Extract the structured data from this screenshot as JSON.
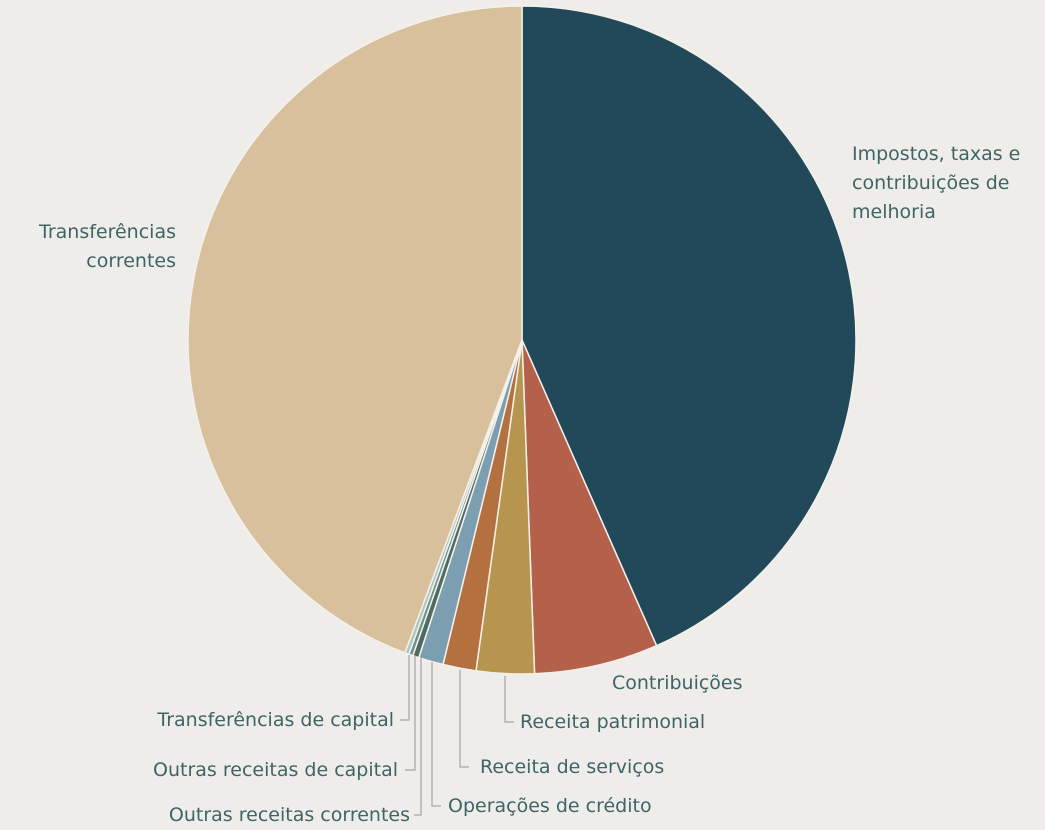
{
  "chart_data": {
    "type": "pie",
    "categories": [
      "Impostos, taxas e contribuições de melhoria",
      "Contribuições",
      "Receita patrimonial",
      "Receita de serviços",
      "Operações de crédito",
      "Outras receitas correntes",
      "Outras receitas de capital",
      "Transferências de capital",
      "Transferências correntes"
    ],
    "values": [
      43.4,
      6.0,
      2.8,
      1.6,
      1.2,
      0.3,
      0.2,
      0.2,
      44.3
    ],
    "colors": [
      "#22495a",
      "#b5604a",
      "#b8954f",
      "#b5703f",
      "#7b9fb0",
      "#4d6b62",
      "#6f918c",
      "#a8c8c0",
      "#d8c09c"
    ]
  }
}
